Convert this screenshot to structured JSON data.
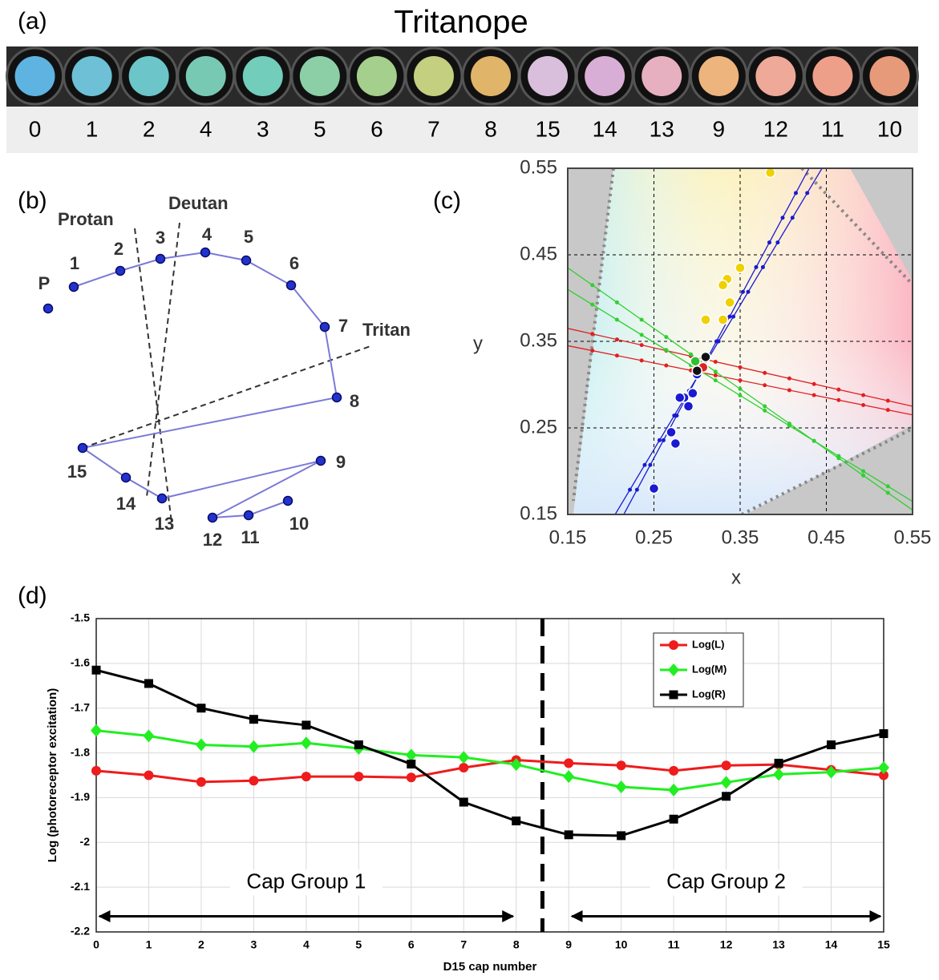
{
  "strip": {
    "label": "(a)",
    "title": "Tritanope",
    "caps": [
      "0",
      "1",
      "2",
      "4",
      "3",
      "5",
      "6",
      "7",
      "8",
      "15",
      "14",
      "13",
      "9",
      "12",
      "11",
      "10"
    ],
    "colors": [
      "#5fb3e0",
      "#6dc0d6",
      "#6cc6c9",
      "#78c9b4",
      "#72cdbb",
      "#8ccfa6",
      "#a5cf8c",
      "#c4cf80",
      "#e0b56a",
      "#d9bfdc",
      "#d9aed6",
      "#e6b0c1",
      "#eeb47d",
      "#eea999",
      "#ee9f8a",
      "#e69a7a"
    ]
  },
  "diagram": {
    "label": "(b)",
    "nodes": [
      "P",
      "1",
      "2",
      "3",
      "4",
      "5",
      "6",
      "7",
      "8",
      "15",
      "14",
      "13",
      "9",
      "12",
      "11",
      "10"
    ],
    "lines": [
      "Protan",
      "Deutan",
      "Tritan"
    ]
  },
  "chart_data": [
    {
      "type": "scatter",
      "label": "(c)",
      "x_label": "x",
      "y_label": "y",
      "xlim": [
        0.15,
        0.55
      ],
      "ylim": [
        0.15,
        0.55
      ],
      "xticks": [
        0.15,
        0.25,
        0.35,
        0.45,
        0.55
      ],
      "yticks": [
        0.15,
        0.25,
        0.35,
        0.45,
        0.55
      ],
      "grid": true,
      "series": [
        {
          "color": "#f0d000",
          "x": [
            0.385,
            0.35,
            0.335,
            0.33,
            0.338,
            0.31,
            0.33
          ],
          "y": [
            0.545,
            0.435,
            0.422,
            0.415,
            0.395,
            0.375,
            0.375
          ]
        },
        {
          "color": "#1a1ad0",
          "x": [
            0.25,
            0.275,
            0.27,
            0.29,
            0.285,
            0.295,
            0.28,
            0.3
          ],
          "y": [
            0.18,
            0.232,
            0.245,
            0.275,
            0.285,
            0.29,
            0.285,
            0.312
          ]
        },
        {
          "color": "#30c030",
          "x": [
            0.298
          ],
          "y": [
            0.327
          ]
        },
        {
          "color": "#e02020",
          "x": [
            0.307
          ],
          "y": [
            0.32
          ]
        },
        {
          "color": "#111111",
          "x": [
            0.31,
            0.3
          ],
          "y": [
            0.332,
            0.316
          ]
        }
      ],
      "lines": [
        {
          "color": "#e02020",
          "x": [
            0.15,
            0.55
          ],
          "y": [
            0.365,
            0.275
          ]
        },
        {
          "color": "#e02020",
          "x": [
            0.15,
            0.55
          ],
          "y": [
            0.345,
            0.265
          ]
        },
        {
          "color": "#30d030",
          "x": [
            0.15,
            0.55
          ],
          "y": [
            0.435,
            0.155
          ]
        },
        {
          "color": "#30d030",
          "x": [
            0.15,
            0.55
          ],
          "y": [
            0.41,
            0.165
          ]
        },
        {
          "color": "#1a1ad0",
          "x": [
            0.215,
            0.43
          ],
          "y": [
            0.15,
            0.55
          ]
        },
        {
          "color": "#1a1ad0",
          "x": [
            0.205,
            0.445
          ],
          "y": [
            0.15,
            0.55
          ]
        }
      ]
    },
    {
      "type": "line",
      "label": "(d)",
      "x_label": "D15 cap number",
      "y_label": "Log (photoreceptor excitation)",
      "x": [
        0,
        1,
        2,
        3,
        4,
        5,
        6,
        7,
        8,
        9,
        10,
        11,
        12,
        13,
        14,
        15
      ],
      "xlim": [
        0,
        15
      ],
      "ylim": [
        -2.2,
        -1.5
      ],
      "xticks": [
        0,
        1,
        2,
        3,
        4,
        5,
        6,
        7,
        8,
        9,
        10,
        11,
        12,
        13,
        14,
        15
      ],
      "yticks": [
        -2.2,
        -2.1,
        -2,
        -1.9,
        -1.8,
        -1.7,
        -1.6,
        -1.5
      ],
      "grid": true,
      "legend": "upper-right",
      "divider": 8.5,
      "series": [
        {
          "name": "Log(L)",
          "color": "#ee1c1c",
          "marker": "circle",
          "values": [
            -1.84,
            -1.85,
            -1.865,
            -1.862,
            -1.853,
            -1.853,
            -1.855,
            -1.833,
            -1.816,
            -1.823,
            -1.828,
            -1.84,
            -1.828,
            -1.826,
            -1.838,
            -1.85
          ]
        },
        {
          "name": "Log(M)",
          "color": "#22ee22",
          "marker": "diamond",
          "values": [
            -1.75,
            -1.762,
            -1.782,
            -1.786,
            -1.778,
            -1.79,
            -1.805,
            -1.81,
            -1.826,
            -1.853,
            -1.876,
            -1.883,
            -1.866,
            -1.848,
            -1.843,
            -1.833
          ]
        },
        {
          "name": "Log(R)",
          "color": "#000000",
          "marker": "square",
          "values": [
            -1.615,
            -1.645,
            -1.7,
            -1.725,
            -1.738,
            -1.782,
            -1.825,
            -1.91,
            -1.952,
            -1.983,
            -1.985,
            -1.948,
            -1.897,
            -1.823,
            -1.782,
            -1.757
          ]
        }
      ],
      "annotations": [
        {
          "text": "Cap Group 1",
          "from": 0,
          "to": 8,
          "text_y": -2.09,
          "arrow_y": -2.165
        },
        {
          "text": "Cap Group 2",
          "from": 9,
          "to": 15,
          "text_y": -2.09,
          "arrow_y": -2.165
        }
      ]
    }
  ]
}
